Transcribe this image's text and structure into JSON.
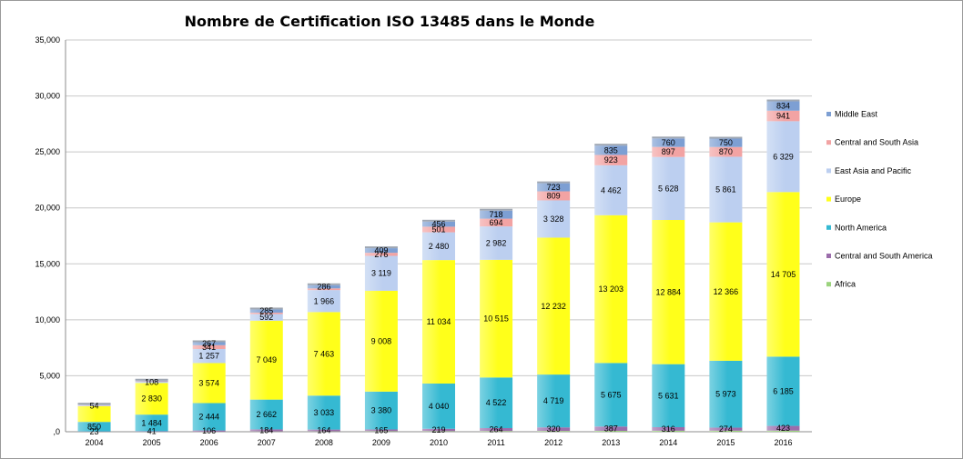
{
  "chart_data": {
    "type": "bar",
    "stacked": true,
    "title": "Nombre de Certification ISO 13485 dans le Monde",
    "xlabel": "",
    "ylabel": "",
    "ylim": [
      0,
      35000
    ],
    "yticks": [
      0,
      5000,
      10000,
      15000,
      20000,
      25000,
      30000,
      35000
    ],
    "ytick_labels": [
      ",0",
      "5,000",
      "10,000",
      "15,000",
      "20,000",
      "25,000",
      "30,000",
      "35,000"
    ],
    "grid": true,
    "legend_position": "right",
    "categories": [
      "2004",
      "2005",
      "2006",
      "2007",
      "2008",
      "2009",
      "2010",
      "2011",
      "2012",
      "2013",
      "2014",
      "2015",
      "2016"
    ],
    "series": [
      {
        "name": "Africa",
        "color": "#9bd37d",
        "values": [
          5,
          5,
          10,
          25,
          30,
          40,
          45,
          60,
          70,
          80,
          90,
          95,
          100
        ],
        "labels": [
          "",
          "",
          "",
          "",
          "",
          "",
          "",
          "",
          "",
          "",
          "",
          "",
          ""
        ]
      },
      {
        "name": "Central and South America",
        "color": "#9b6dab",
        "values": [
          23,
          41,
          106,
          184,
          164,
          165,
          219,
          264,
          320,
          387,
          316,
          274,
          423
        ],
        "labels": [
          "23",
          "41",
          "106",
          "184",
          "164",
          "165",
          "219",
          "264",
          "320",
          "387",
          "316",
          "274",
          "423"
        ]
      },
      {
        "name": "North America",
        "color": "#35b9d2",
        "values": [
          850,
          1484,
          2444,
          2662,
          3033,
          3380,
          4040,
          4522,
          4719,
          5675,
          5631,
          5973,
          6185
        ],
        "labels": [
          "850",
          "1 484",
          "2 444",
          "2 662",
          "3 033",
          "3 380",
          "4 040",
          "4 522",
          "4 719",
          "5 675",
          "5 631",
          "5 973",
          "6 185"
        ]
      },
      {
        "name": "Europe",
        "color": "#ffff1a",
        "values": [
          1400,
          2830,
          3574,
          7049,
          7463,
          9008,
          11034,
          10515,
          12232,
          13203,
          12884,
          12366,
          14705
        ],
        "labels": [
          "",
          "2 830",
          "3 574",
          "7 049",
          "7 463",
          "9 008",
          "11 034",
          "10 515",
          "12 232",
          "13 203",
          "12 884",
          "12 366",
          "14 705"
        ]
      },
      {
        "name": "East Asia and Pacific",
        "color": "#bccff0",
        "values": [
          54,
          108,
          1257,
          592,
          1966,
          3119,
          2480,
          2982,
          3328,
          4462,
          5628,
          5861,
          6329
        ],
        "labels": [
          "54",
          "108",
          "1 257",
          "592",
          "1 966",
          "3 119",
          "2 480",
          "2 982",
          "3 328",
          "4 462",
          "5 628",
          "5 861",
          "6 329"
        ]
      },
      {
        "name": "Central and South Asia",
        "color": "#f2a3a3",
        "values": [
          40,
          40,
          341,
          130,
          150,
          276,
          501,
          694,
          809,
          923,
          897,
          870,
          941
        ],
        "labels": [
          "",
          "",
          "341",
          "",
          "",
          "276",
          "501",
          "694",
          "809",
          "923",
          "897",
          "870",
          "941"
        ]
      },
      {
        "name": "Middle East",
        "color": "#7d9fd3",
        "values": [
          50,
          60,
          267,
          285,
          286,
          409,
          456,
          718,
          723,
          835,
          760,
          750,
          834
        ],
        "labels": [
          "",
          "",
          "267",
          "285",
          "286",
          "409",
          "456",
          "718",
          "723",
          "835",
          "760",
          "750",
          "834"
        ]
      }
    ]
  }
}
